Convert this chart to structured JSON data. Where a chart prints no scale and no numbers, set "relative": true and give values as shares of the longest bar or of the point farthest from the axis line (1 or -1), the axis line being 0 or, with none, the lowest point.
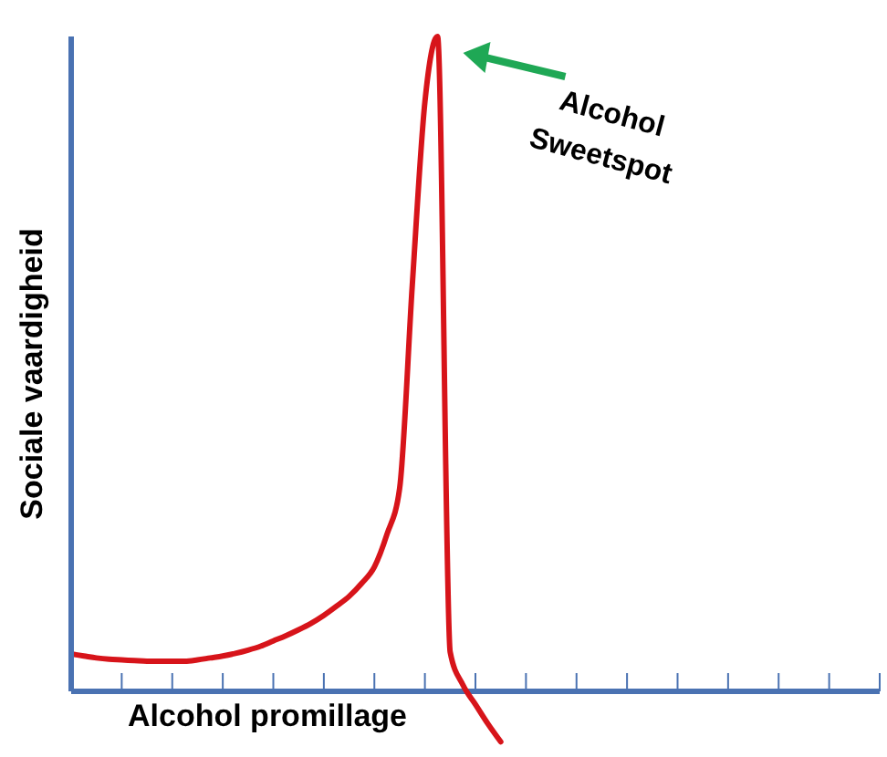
{
  "chart_data": {
    "type": "line",
    "relative": true,
    "xlabel": "Alcohol promillage",
    "ylabel": "Sociale vaardigheid",
    "categories": [
      null,
      null,
      null,
      null,
      null,
      null,
      null,
      null,
      null,
      null,
      null,
      null,
      null,
      null,
      null,
      null,
      null,
      null,
      null,
      null,
      null,
      null,
      null,
      null,
      null,
      null,
      null,
      null,
      null,
      null,
      null,
      null,
      null,
      null,
      null,
      null,
      null,
      null,
      null,
      null,
      null,
      null,
      null,
      null,
      null,
      null,
      null,
      null,
      null,
      null,
      null,
      null,
      null,
      null,
      null,
      null,
      null,
      null,
      null,
      null,
      null,
      null,
      null,
      null,
      null
    ],
    "ref_lines": [
      {
        "axis": "y",
        "value": 0,
        "color": "#4a72b2"
      }
    ],
    "grid": false,
    "legend": false,
    "marker": "none",
    "line_style": "solid",
    "annotations": [
      "Alcohol\nSweetspot"
    ],
    "series": [
      {
        "color": "#d7141a",
        "values": [
          0.057,
          0.054,
          0.051,
          0.049,
          0.048,
          0.047,
          0.046,
          0.046,
          0.046,
          0.046,
          0.048,
          0.051,
          0.054,
          0.058,
          0.063,
          0.069,
          0.077,
          0.085,
          0.094,
          0.104,
          0.116,
          0.13,
          0.145,
          0.165,
          0.19,
          0.24,
          0.31,
          0.62,
          0.9,
          1,
          0.06,
          0.01,
          -0.02,
          -0.05,
          -0.077,
          null,
          null,
          null,
          null,
          null,
          null,
          null,
          null,
          null,
          null,
          null,
          null,
          null,
          null,
          null,
          null,
          null,
          null,
          null,
          null,
          null,
          null,
          null,
          null,
          null,
          null,
          null,
          null,
          null,
          null
        ]
      }
    ]
  }
}
